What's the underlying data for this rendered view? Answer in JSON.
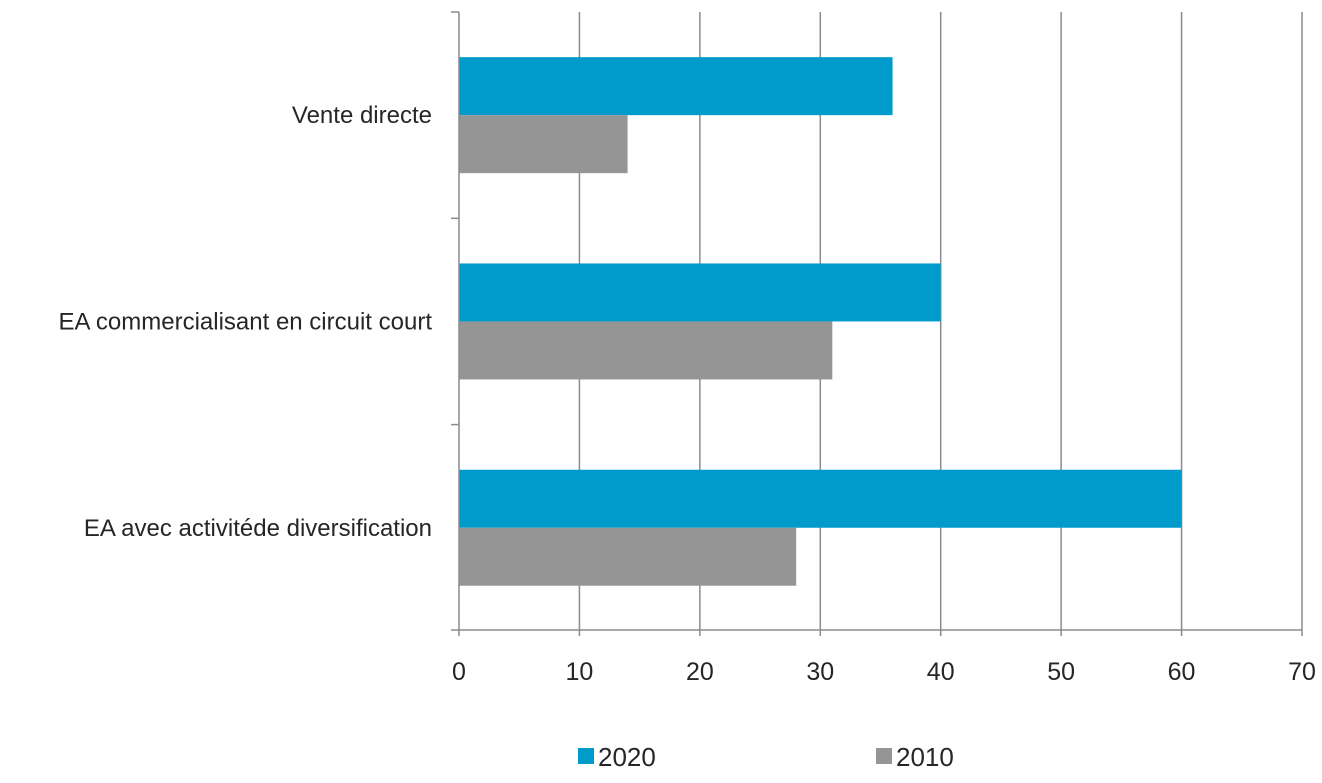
{
  "chart_data": {
    "type": "bar",
    "orientation": "horizontal",
    "categories": [
      "Vente directe",
      "EA commercialisant en circuit court",
      "EA avec activitéde diversification"
    ],
    "series": [
      {
        "name": "2020",
        "color": "#009BCA",
        "values": [
          36,
          40,
          60
        ]
      },
      {
        "name": "2010",
        "color": "#959595",
        "values": [
          14,
          31,
          28
        ]
      }
    ],
    "xlim": [
      0,
      70
    ],
    "xticks": [
      "0",
      "10",
      "20",
      "30",
      "40",
      "50",
      "60",
      "70"
    ],
    "grid": true,
    "legend_position": "bottom",
    "title": "",
    "xlabel": "",
    "ylabel": ""
  },
  "colors": {
    "axis": "#8C8C8C",
    "grid": "#8C8C8C",
    "text": "#262626"
  }
}
